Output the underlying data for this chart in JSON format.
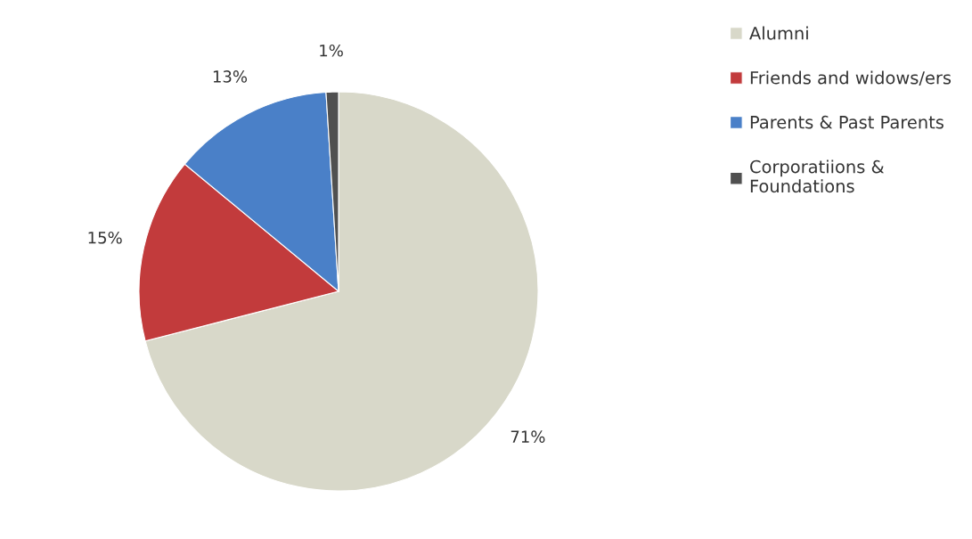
{
  "chart_data": {
    "type": "pie",
    "categories": [
      "Alumni",
      "Friends and widows/ers",
      "Parents & Past Parents",
      "Corporatiions &\nFoundations"
    ],
    "values": [
      71,
      15,
      13,
      1
    ],
    "colors": [
      "#d8d8c9",
      "#c23b3c",
      "#4a80c8",
      "#505050"
    ],
    "value_labels": [
      "71%",
      "15%",
      "13%",
      "1%"
    ],
    "legend": "top right"
  }
}
